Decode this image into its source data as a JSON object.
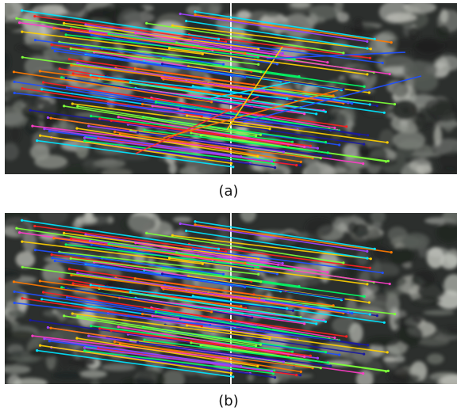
{
  "figure": {
    "panels": [
      {
        "caption": "(a)",
        "content": "stereo-pair-with-feature-matches",
        "match_lines": "many-colored-including-crossing-outliers"
      },
      {
        "caption": "(b)",
        "content": "stereo-pair-with-feature-matches",
        "match_lines": "many-colored-parallel-inliers"
      }
    ],
    "colors": {
      "background": "#ffffff",
      "divider": "#f2f2f2",
      "seabed_dark": "#2c2f2d",
      "seabed_light": "#a9aca5",
      "line_palette": [
        "#ff2020",
        "#ffd000",
        "#00ff66",
        "#00e5ff",
        "#2050ff",
        "#a040ff",
        "#ff7a00",
        "#ff3cc8",
        "#7dff3a",
        "#1a1aa0"
      ]
    }
  }
}
